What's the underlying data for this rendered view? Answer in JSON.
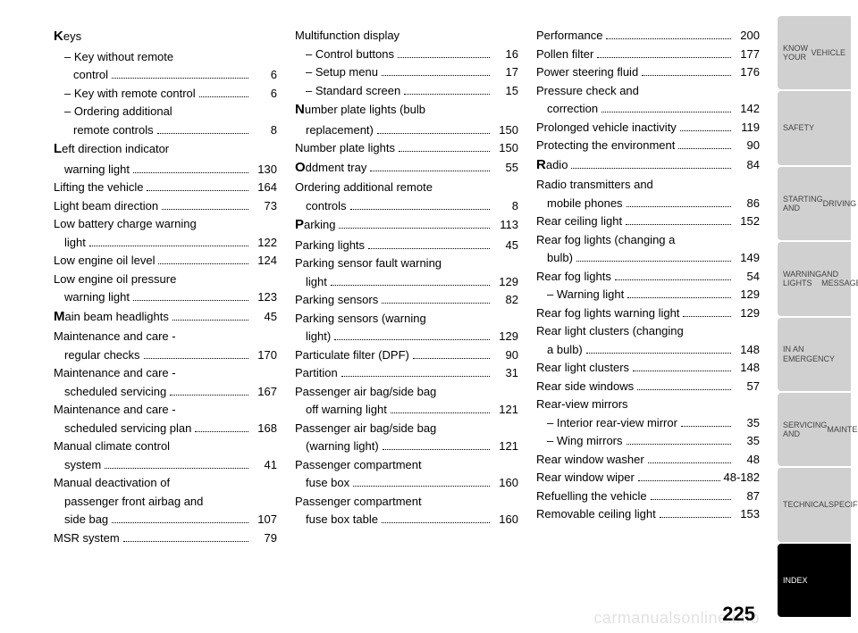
{
  "page_number": "225",
  "watermark": "carmanualsonline.info",
  "columns": [
    [
      {
        "cap": "K",
        "label": "eys",
        "pg": ""
      },
      {
        "indent": 1,
        "label": "– Key without remote",
        "pg": ""
      },
      {
        "indent": 2,
        "label": "control",
        "pg": "6"
      },
      {
        "indent": 1,
        "label": "– Key with remote control",
        "pg": "6"
      },
      {
        "indent": 1,
        "label": "– Ordering additional",
        "pg": ""
      },
      {
        "indent": 2,
        "label": "remote controls",
        "pg": "8"
      },
      {
        "cap": "L",
        "label": "eft direction indicator",
        "pg": ""
      },
      {
        "indent": 1,
        "label": "warning light",
        "pg": "130"
      },
      {
        "label": "Lifting the vehicle",
        "pg": "164"
      },
      {
        "label": "Light beam direction",
        "pg": "73"
      },
      {
        "label": "Low battery charge warning",
        "pg": ""
      },
      {
        "indent": 1,
        "label": "light",
        "pg": "122"
      },
      {
        "label": "Low engine oil level",
        "pg": "124"
      },
      {
        "label": "Low engine oil pressure",
        "pg": ""
      },
      {
        "indent": 1,
        "label": "warning light",
        "pg": "123"
      },
      {
        "cap": "M",
        "label": "ain beam headlights",
        "pg": "45"
      },
      {
        "label": "Maintenance and care -",
        "pg": ""
      },
      {
        "indent": 1,
        "label": "regular checks",
        "pg": "170"
      },
      {
        "label": "Maintenance and care -",
        "pg": ""
      },
      {
        "indent": 1,
        "label": "scheduled servicing",
        "pg": "167"
      },
      {
        "label": "Maintenance and care -",
        "pg": ""
      },
      {
        "indent": 1,
        "label": "scheduled servicing plan",
        "pg": "168"
      },
      {
        "label": "Manual climate control",
        "pg": ""
      },
      {
        "indent": 1,
        "label": "system",
        "pg": "41"
      },
      {
        "label": "Manual deactivation of",
        "pg": ""
      },
      {
        "indent": 1,
        "label": "passenger front airbag and",
        "pg": ""
      },
      {
        "indent": 1,
        "label": "side bag",
        "pg": "107"
      },
      {
        "label": "MSR system",
        "pg": "79"
      }
    ],
    [
      {
        "label": "Multifunction display",
        "pg": ""
      },
      {
        "indent": 1,
        "label": "– Control buttons",
        "pg": "16"
      },
      {
        "indent": 1,
        "label": "– Setup menu",
        "pg": "17"
      },
      {
        "indent": 1,
        "label": "– Standard screen",
        "pg": "15"
      },
      {
        "cap": "N",
        "label": "umber plate lights (bulb",
        "pg": ""
      },
      {
        "indent": 1,
        "label": "replacement)",
        "pg": "150"
      },
      {
        "label": "Number plate lights",
        "pg": "150"
      },
      {
        "cap": "O",
        "label": "ddment tray",
        "pg": "55"
      },
      {
        "label": "Ordering additional remote",
        "pg": ""
      },
      {
        "indent": 1,
        "label": "controls",
        "pg": "8"
      },
      {
        "cap": "P",
        "label": "arking",
        "pg": "113"
      },
      {
        "label": "Parking lights",
        "pg": "45"
      },
      {
        "label": "Parking sensor fault warning",
        "pg": ""
      },
      {
        "indent": 1,
        "label": "light",
        "pg": "129"
      },
      {
        "label": "Parking sensors",
        "pg": "82"
      },
      {
        "label": "Parking sensors (warning",
        "pg": ""
      },
      {
        "indent": 1,
        "label": "light)",
        "pg": "129"
      },
      {
        "label": "Particulate filter (DPF)",
        "pg": "90"
      },
      {
        "label": "Partition",
        "pg": "31"
      },
      {
        "label": "Passenger air bag/side bag",
        "pg": ""
      },
      {
        "indent": 1,
        "label": "off warning light",
        "pg": "121"
      },
      {
        "label": "Passenger air bag/side bag",
        "pg": ""
      },
      {
        "indent": 1,
        "label": "(warning light)",
        "pg": "121"
      },
      {
        "label": "Passenger compartment",
        "pg": ""
      },
      {
        "indent": 1,
        "label": "fuse box",
        "pg": "160"
      },
      {
        "label": "Passenger compartment",
        "pg": ""
      },
      {
        "indent": 1,
        "label": "fuse box table",
        "pg": "160"
      }
    ],
    [
      {
        "label": "Performance",
        "pg": "200"
      },
      {
        "label": "Pollen filter",
        "pg": "177"
      },
      {
        "label": "Power steering fluid",
        "pg": "176"
      },
      {
        "label": "Pressure check and",
        "pg": ""
      },
      {
        "indent": 1,
        "label": "correction",
        "pg": "142"
      },
      {
        "label": "Prolonged vehicle inactivity",
        "pg": "119"
      },
      {
        "label": "Protecting the environment",
        "pg": "90"
      },
      {
        "cap": "R",
        "label": "adio",
        "pg": "84"
      },
      {
        "label": "Radio transmitters and",
        "pg": ""
      },
      {
        "indent": 1,
        "label": "mobile phones",
        "pg": "86"
      },
      {
        "label": "Rear ceiling light",
        "pg": "152"
      },
      {
        "label": "Rear fog lights (changing a",
        "pg": ""
      },
      {
        "indent": 1,
        "label": "bulb)",
        "pg": "149"
      },
      {
        "label": "Rear fog lights",
        "pg": "54"
      },
      {
        "indent": 1,
        "label": "– Warning light",
        "pg": "129"
      },
      {
        "label": "Rear fog lights warning light",
        "pg": "129"
      },
      {
        "label": "Rear light clusters (changing",
        "pg": ""
      },
      {
        "indent": 1,
        "label": "a bulb)",
        "pg": "148"
      },
      {
        "label": "Rear light clusters",
        "pg": "148"
      },
      {
        "label": "Rear side windows",
        "pg": "57"
      },
      {
        "label": "Rear-view mirrors",
        "pg": ""
      },
      {
        "indent": 1,
        "label": "– Interior rear-view mirror",
        "pg": "35"
      },
      {
        "indent": 1,
        "label": "– Wing mirrors",
        "pg": "35"
      },
      {
        "label": "Rear window washer",
        "pg": "48"
      },
      {
        "label": "Rear window wiper",
        "pg": "48-182"
      },
      {
        "label": "Refuelling the vehicle",
        "pg": "87"
      },
      {
        "label": "Removable ceiling light",
        "pg": "153"
      }
    ]
  ],
  "tabs": [
    {
      "label": "KNOW YOUR\nVEHICLE",
      "active": false
    },
    {
      "label": "SAFETY",
      "active": false
    },
    {
      "label": "STARTING AND\nDRIVING",
      "active": false
    },
    {
      "label": "WARNING LIGHTS\nAND MESSAGES",
      "active": false
    },
    {
      "label": "IN AN EMERGENCY",
      "active": false
    },
    {
      "label": "SERVICING AND\nMAINTENANCE",
      "active": false
    },
    {
      "label": "TECHNICAL\nSPECIFICATIONS",
      "active": false
    },
    {
      "label": "INDEX",
      "active": true
    }
  ]
}
